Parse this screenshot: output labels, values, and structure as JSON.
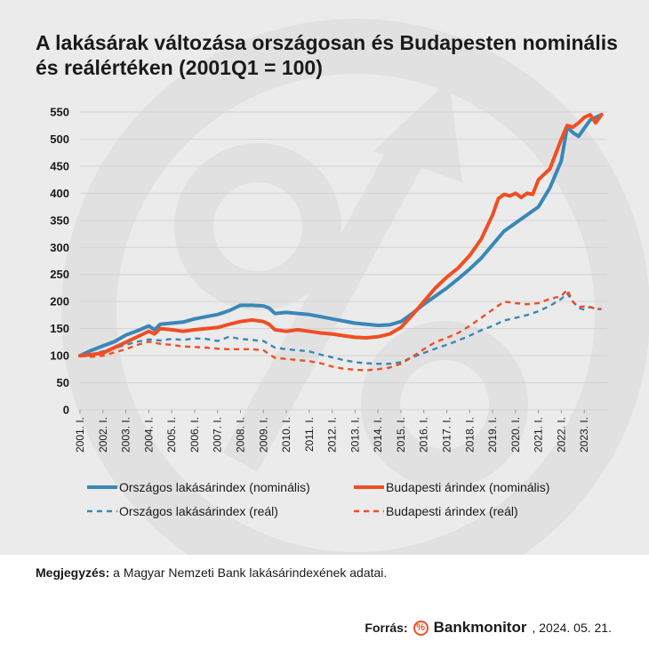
{
  "header": {
    "title": "A lakásárak változása országosan és Budapesten nominális és reálértéken (2001Q1 = 100)"
  },
  "colors": {
    "blue": "#3a87b7",
    "orange": "#f04e23",
    "panel": "#ebebeb"
  },
  "chart_data": {
    "type": "line",
    "title": "A lakásárak változása országosan és Budapesten nominális és reálértéken (2001Q1 = 100)",
    "ylim": [
      0,
      550
    ],
    "yticks": [
      0,
      50,
      100,
      150,
      200,
      250,
      300,
      350,
      400,
      450,
      500,
      550
    ],
    "xlim": [
      2001.0,
      2024.0
    ],
    "xticks": [
      "2001. I.",
      "2002. I.",
      "2003. I.",
      "2004. I.",
      "2005. I.",
      "2006. I.",
      "2007. I.",
      "2008. I.",
      "2009. I.",
      "2010. I.",
      "2011. I.",
      "2012. I.",
      "2013. I.",
      "2014. I.",
      "2015. I.",
      "2016. I.",
      "2017. I.",
      "2018. I.",
      "2019. I.",
      "2020. I.",
      "2021. I.",
      "2022. I.",
      "2023. I."
    ],
    "grid": true,
    "legend": "bottom",
    "series": [
      {
        "name": "Országos lakásárindex (nominális)",
        "color": "#3a87b7",
        "dash": false,
        "x": [
          2001.0,
          2001.5,
          2002.0,
          2002.5,
          2003.0,
          2003.5,
          2004.0,
          2004.25,
          2004.5,
          2005.0,
          2005.5,
          2006.0,
          2006.5,
          2007.0,
          2007.5,
          2008.0,
          2008.5,
          2009.0,
          2009.25,
          2009.5,
          2010.0,
          2010.5,
          2011.0,
          2011.5,
          2012.0,
          2012.5,
          2013.0,
          2013.5,
          2014.0,
          2014.5,
          2015.0,
          2015.5,
          2016.0,
          2016.5,
          2017.0,
          2017.5,
          2018.0,
          2018.5,
          2019.0,
          2019.5,
          2020.0,
          2020.5,
          2021.0,
          2021.5,
          2022.0,
          2022.25,
          2022.5,
          2022.75,
          2023.0,
          2023.25,
          2023.5,
          2023.75
        ],
        "y": [
          100,
          110,
          118,
          126,
          138,
          146,
          155,
          148,
          158,
          160,
          162,
          168,
          172,
          176,
          183,
          193,
          193,
          192,
          188,
          178,
          180,
          178,
          176,
          172,
          168,
          164,
          160,
          158,
          156,
          157,
          163,
          178,
          195,
          210,
          225,
          242,
          260,
          280,
          305,
          330,
          345,
          360,
          375,
          410,
          460,
          522,
          512,
          505,
          520,
          535,
          540,
          545
        ]
      },
      {
        "name": "Budapesti árindex (nominális)",
        "color": "#f04e23",
        "dash": false,
        "x": [
          2001.0,
          2001.5,
          2002.0,
          2002.5,
          2003.0,
          2003.5,
          2004.0,
          2004.25,
          2004.5,
          2005.0,
          2005.5,
          2006.0,
          2006.5,
          2007.0,
          2007.5,
          2008.0,
          2008.5,
          2009.0,
          2009.25,
          2009.5,
          2010.0,
          2010.5,
          2011.0,
          2011.5,
          2012.0,
          2012.5,
          2013.0,
          2013.5,
          2014.0,
          2014.5,
          2015.0,
          2015.5,
          2016.0,
          2016.5,
          2017.0,
          2017.5,
          2018.0,
          2018.5,
          2019.0,
          2019.25,
          2019.5,
          2019.75,
          2020.0,
          2020.25,
          2020.5,
          2020.75,
          2021.0,
          2021.5,
          2022.0,
          2022.25,
          2022.5,
          2022.75,
          2023.0,
          2023.25,
          2023.5,
          2023.75
        ],
        "y": [
          100,
          102,
          105,
          115,
          125,
          135,
          145,
          140,
          150,
          148,
          145,
          148,
          150,
          152,
          158,
          163,
          166,
          163,
          158,
          148,
          145,
          148,
          145,
          142,
          140,
          137,
          134,
          133,
          135,
          140,
          152,
          175,
          200,
          225,
          245,
          262,
          285,
          315,
          360,
          390,
          398,
          395,
          400,
          392,
          400,
          398,
          425,
          445,
          500,
          525,
          522,
          530,
          540,
          545,
          530,
          545
        ]
      },
      {
        "name": "Országos lakásárindex (reál)",
        "color": "#3a87b7",
        "dash": true,
        "x": [
          2001.0,
          2001.5,
          2002.0,
          2002.5,
          2003.0,
          2003.5,
          2004.0,
          2004.5,
          2005.0,
          2005.5,
          2006.0,
          2006.5,
          2007.0,
          2007.5,
          2008.0,
          2008.5,
          2009.0,
          2009.5,
          2010.0,
          2010.5,
          2011.0,
          2011.5,
          2012.0,
          2012.5,
          2013.0,
          2013.5,
          2014.0,
          2014.5,
          2015.0,
          2015.5,
          2016.0,
          2016.5,
          2017.0,
          2017.5,
          2018.0,
          2018.5,
          2019.0,
          2019.5,
          2020.0,
          2020.5,
          2021.0,
          2021.5,
          2022.0,
          2022.25,
          2022.5,
          2022.75,
          2023.0,
          2023.25,
          2023.5,
          2023.75
        ],
        "y": [
          100,
          103,
          108,
          114,
          120,
          126,
          130,
          128,
          131,
          129,
          132,
          131,
          127,
          135,
          131,
          129,
          127,
          115,
          112,
          110,
          108,
          102,
          97,
          92,
          88,
          86,
          85,
          85,
          88,
          97,
          105,
          113,
          120,
          128,
          137,
          147,
          155,
          165,
          170,
          175,
          182,
          192,
          205,
          215,
          200,
          188,
          185,
          190,
          187,
          186
        ]
      },
      {
        "name": "Budapesti árindex (reál)",
        "color": "#f04e23",
        "dash": true,
        "x": [
          2001.0,
          2001.5,
          2002.0,
          2002.5,
          2003.0,
          2003.5,
          2004.0,
          2004.5,
          2005.0,
          2005.5,
          2006.0,
          2006.5,
          2007.0,
          2007.5,
          2008.0,
          2008.5,
          2009.0,
          2009.5,
          2010.0,
          2010.5,
          2011.0,
          2011.5,
          2012.0,
          2012.5,
          2013.0,
          2013.5,
          2014.0,
          2014.5,
          2015.0,
          2015.5,
          2016.0,
          2016.5,
          2017.0,
          2017.5,
          2018.0,
          2018.5,
          2019.0,
          2019.5,
          2020.0,
          2020.5,
          2021.0,
          2021.5,
          2022.0,
          2022.25,
          2022.5,
          2022.75,
          2023.0,
          2023.25,
          2023.5,
          2023.75
        ],
        "y": [
          100,
          98,
          100,
          106,
          112,
          120,
          126,
          122,
          120,
          117,
          116,
          115,
          113,
          112,
          112,
          112,
          110,
          96,
          94,
          92,
          90,
          86,
          80,
          76,
          74,
          73,
          75,
          78,
          85,
          98,
          112,
          125,
          133,
          142,
          155,
          170,
          185,
          200,
          197,
          195,
          197,
          205,
          210,
          222,
          200,
          190,
          191,
          190,
          186,
          186
        ]
      }
    ]
  },
  "footer": {
    "note_label": "Megjegyzés:",
    "note_text": " a Magyar Nemzeti Bank lakásárindexének adatai.",
    "source_label": "Forrás:",
    "brand_icon": "%",
    "brand": "Bankmonitor",
    "date": ", 2024. 05. 21."
  }
}
